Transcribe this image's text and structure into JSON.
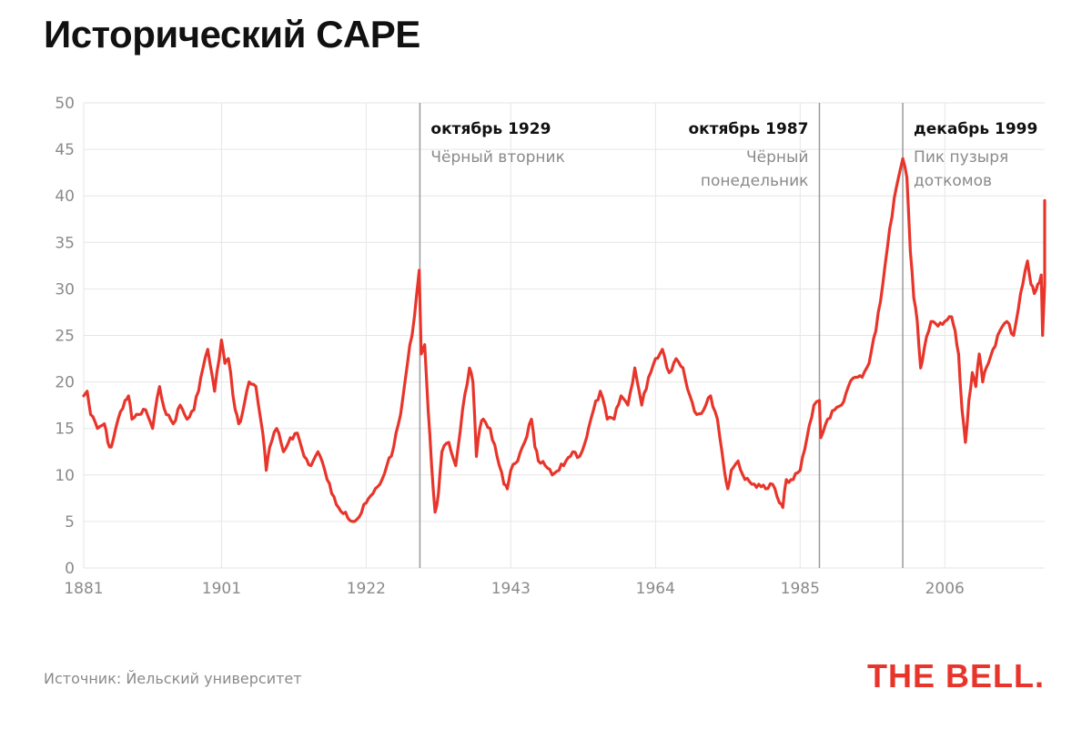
{
  "title": "Исторический CAPE",
  "source": "Источник: Йельский университет",
  "logo": "THE BELL.",
  "colors": {
    "line": "#e8352b",
    "grid": "#e6e6e6",
    "marker": "#9a9a9a",
    "text": "#111111",
    "muted": "#8a8a8a"
  },
  "chart_data": {
    "type": "line",
    "title": "Исторический CAPE",
    "xlabel": "",
    "ylabel": "",
    "xlim": [
      1881,
      2020.5
    ],
    "ylim": [
      0,
      50
    ],
    "x_ticks": [
      1881,
      1901,
      1922,
      1943,
      1964,
      1985,
      2006
    ],
    "y_ticks": [
      0,
      5,
      10,
      15,
      20,
      25,
      30,
      35,
      40,
      45,
      50
    ],
    "grid": true,
    "annotations": [
      {
        "x": 1929.8,
        "title": "октябрь 1929",
        "lines": [
          "Чёрный вторник"
        ],
        "align": "right"
      },
      {
        "x": 1987.8,
        "title": "октябрь 1987",
        "lines": [
          "Чёрный",
          "понедельник"
        ],
        "align": "left"
      },
      {
        "x": 1999.9,
        "title": "декабрь 1999",
        "lines": [
          "Пик пузыря",
          "доткомов"
        ],
        "align": "right"
      }
    ],
    "series": [
      {
        "values": [
          [
            1881.0,
            18.5
          ],
          [
            1881.5,
            19.0
          ],
          [
            1882.0,
            16.5
          ],
          [
            1883.0,
            15.0
          ],
          [
            1884.0,
            15.5
          ],
          [
            1884.5,
            13.5
          ],
          [
            1885.0,
            13.0
          ],
          [
            1886.0,
            16.0
          ],
          [
            1887.0,
            18.0
          ],
          [
            1887.5,
            18.5
          ],
          [
            1888.0,
            16.0
          ],
          [
            1889.0,
            16.5
          ],
          [
            1890.0,
            17.0
          ],
          [
            1891.0,
            15.0
          ],
          [
            1892.0,
            19.5
          ],
          [
            1893.0,
            16.5
          ],
          [
            1894.0,
            15.5
          ],
          [
            1895.0,
            17.5
          ],
          [
            1896.0,
            16.0
          ],
          [
            1897.0,
            17.0
          ],
          [
            1898.0,
            20.5
          ],
          [
            1899.0,
            23.5
          ],
          [
            1900.0,
            19.0
          ],
          [
            1901.0,
            24.5
          ],
          [
            1901.5,
            22.0
          ],
          [
            1902.0,
            22.5
          ],
          [
            1903.0,
            17.0
          ],
          [
            1903.5,
            15.5
          ],
          [
            1904.0,
            16.5
          ],
          [
            1905.0,
            20.0
          ],
          [
            1906.0,
            19.5
          ],
          [
            1907.0,
            14.5
          ],
          [
            1907.5,
            10.5
          ],
          [
            1908.0,
            13.0
          ],
          [
            1909.0,
            15.0
          ],
          [
            1910.0,
            12.5
          ],
          [
            1911.0,
            14.0
          ],
          [
            1912.0,
            14.5
          ],
          [
            1913.0,
            12.0
          ],
          [
            1914.0,
            11.0
          ],
          [
            1915.0,
            12.5
          ],
          [
            1916.0,
            10.5
          ],
          [
            1917.0,
            8.0
          ],
          [
            1918.0,
            6.5
          ],
          [
            1919.0,
            6.0
          ],
          [
            1920.0,
            5.0
          ],
          [
            1921.0,
            5.5
          ],
          [
            1922.0,
            7.0
          ],
          [
            1923.0,
            8.0
          ],
          [
            1924.0,
            9.0
          ],
          [
            1925.0,
            11.0
          ],
          [
            1926.0,
            13.0
          ],
          [
            1927.0,
            16.5
          ],
          [
            1928.0,
            22.0
          ],
          [
            1929.0,
            27.0
          ],
          [
            1929.7,
            32.0
          ],
          [
            1930.0,
            23.0
          ],
          [
            1930.5,
            24.0
          ],
          [
            1931.0,
            17.0
          ],
          [
            1931.5,
            11.0
          ],
          [
            1932.0,
            6.0
          ],
          [
            1932.5,
            8.0
          ],
          [
            1933.0,
            12.5
          ],
          [
            1934.0,
            13.5
          ],
          [
            1935.0,
            11.0
          ],
          [
            1936.0,
            17.0
          ],
          [
            1937.0,
            21.5
          ],
          [
            1937.5,
            20.0
          ],
          [
            1938.0,
            12.0
          ],
          [
            1938.5,
            15.0
          ],
          [
            1939.0,
            16.0
          ],
          [
            1940.0,
            15.0
          ],
          [
            1941.0,
            12.0
          ],
          [
            1942.0,
            9.0
          ],
          [
            1942.5,
            8.5
          ],
          [
            1943.0,
            10.5
          ],
          [
            1944.0,
            11.5
          ],
          [
            1945.0,
            13.5
          ],
          [
            1946.0,
            16.0
          ],
          [
            1946.5,
            13.0
          ],
          [
            1947.0,
            11.5
          ],
          [
            1948.0,
            11.0
          ],
          [
            1949.0,
            10.0
          ],
          [
            1950.0,
            10.5
          ],
          [
            1951.0,
            11.5
          ],
          [
            1952.0,
            12.5
          ],
          [
            1953.0,
            12.0
          ],
          [
            1954.0,
            14.0
          ],
          [
            1955.0,
            17.0
          ],
          [
            1956.0,
            19.0
          ],
          [
            1957.0,
            16.0
          ],
          [
            1958.0,
            16.0
          ],
          [
            1959.0,
            18.5
          ],
          [
            1960.0,
            17.5
          ],
          [
            1961.0,
            21.5
          ],
          [
            1962.0,
            17.5
          ],
          [
            1963.0,
            20.5
          ],
          [
            1964.0,
            22.5
          ],
          [
            1965.0,
            23.5
          ],
          [
            1966.0,
            21.0
          ],
          [
            1967.0,
            22.5
          ],
          [
            1968.0,
            21.5
          ],
          [
            1969.0,
            18.5
          ],
          [
            1970.0,
            16.5
          ],
          [
            1971.0,
            17.0
          ],
          [
            1972.0,
            18.5
          ],
          [
            1973.0,
            16.0
          ],
          [
            1974.0,
            10.5
          ],
          [
            1974.5,
            8.5
          ],
          [
            1975.0,
            10.5
          ],
          [
            1976.0,
            11.5
          ],
          [
            1977.0,
            9.5
          ],
          [
            1978.0,
            9.0
          ],
          [
            1979.0,
            9.0
          ],
          [
            1980.0,
            8.5
          ],
          [
            1981.0,
            9.0
          ],
          [
            1982.0,
            7.0
          ],
          [
            1982.5,
            6.5
          ],
          [
            1983.0,
            9.5
          ],
          [
            1984.0,
            9.5
          ],
          [
            1985.0,
            10.5
          ],
          [
            1986.0,
            14.0
          ],
          [
            1987.0,
            17.5
          ],
          [
            1987.8,
            18.0
          ],
          [
            1988.0,
            14.0
          ],
          [
            1989.0,
            16.0
          ],
          [
            1990.0,
            17.0
          ],
          [
            1991.0,
            17.5
          ],
          [
            1992.0,
            19.5
          ],
          [
            1993.0,
            20.5
          ],
          [
            1994.0,
            20.5
          ],
          [
            1995.0,
            22.0
          ],
          [
            1996.0,
            25.5
          ],
          [
            1997.0,
            30.5
          ],
          [
            1998.0,
            36.5
          ],
          [
            1999.0,
            41.0
          ],
          [
            1999.9,
            44.0
          ],
          [
            2000.5,
            42.0
          ],
          [
            2001.0,
            34.0
          ],
          [
            2001.5,
            29.0
          ],
          [
            2002.0,
            26.5
          ],
          [
            2002.5,
            21.5
          ],
          [
            2003.0,
            23.5
          ],
          [
            2004.0,
            26.5
          ],
          [
            2005.0,
            26.0
          ],
          [
            2006.0,
            26.5
          ],
          [
            2007.0,
            27.0
          ],
          [
            2007.5,
            25.5
          ],
          [
            2008.0,
            23.0
          ],
          [
            2008.5,
            17.0
          ],
          [
            2009.0,
            13.5
          ],
          [
            2009.5,
            18.0
          ],
          [
            2010.0,
            21.0
          ],
          [
            2010.5,
            19.5
          ],
          [
            2011.0,
            23.0
          ],
          [
            2011.5,
            20.0
          ],
          [
            2012.0,
            21.5
          ],
          [
            2013.0,
            23.5
          ],
          [
            2014.0,
            25.5
          ],
          [
            2015.0,
            26.5
          ],
          [
            2016.0,
            25.0
          ],
          [
            2017.0,
            29.5
          ],
          [
            2018.0,
            33.0
          ],
          [
            2018.5,
            30.5
          ],
          [
            2019.0,
            29.5
          ],
          [
            2019.5,
            30.5
          ],
          [
            2020.0,
            31.5
          ],
          [
            2020.2,
            25.0
          ],
          [
            2020.5,
            30.5
          ],
          [
            2021.0,
            35.0
          ],
          [
            2021.5,
            38.0
          ],
          [
            2022.0,
            39.5
          ]
        ]
      }
    ]
  }
}
